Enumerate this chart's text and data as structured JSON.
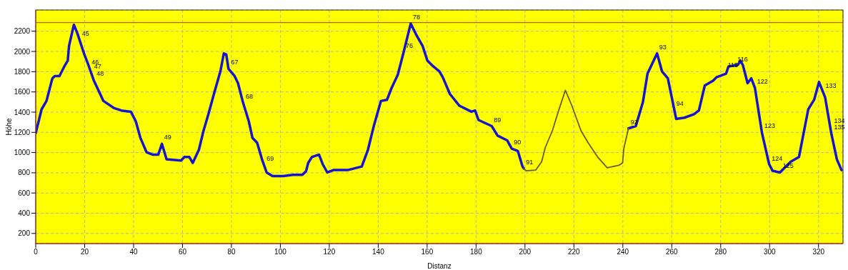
{
  "chart_data": {
    "type": "line",
    "xlabel": "Distanz",
    "ylabel": "Höhe",
    "xlim": [
      0,
      330
    ],
    "ylim": [
      100,
      2410
    ],
    "xticks": [
      0,
      20,
      40,
      60,
      80,
      100,
      120,
      140,
      160,
      180,
      200,
      220,
      240,
      260,
      280,
      300,
      320
    ],
    "yticks": [
      200,
      400,
      600,
      800,
      1000,
      1200,
      1400,
      1600,
      1800,
      2000,
      2200
    ],
    "grid": true,
    "line_style": "solid",
    "marker": "none",
    "ref_lines": [
      {
        "axis": "y",
        "value": 2285,
        "color": "#c83200"
      }
    ],
    "series": [
      {
        "color": "#1414d2",
        "x": [
          0,
          2.4,
          4.4,
          6.8,
          7.8,
          9.7,
          11.7,
          13.1,
          13.6,
          15.6,
          17.0,
          19.9,
          21.4,
          23.8,
          27.7,
          32.1,
          35.0,
          38.9,
          40.9,
          42.8,
          45.3,
          47.7,
          50.1,
          51.6,
          53.5,
          59.4,
          60.8,
          62.8,
          64.2,
          66.7,
          68.6,
          70.6,
          73.0,
          75.5,
          76.9,
          77.9,
          78.8,
          81.3,
          82.7,
          84.7,
          87.1,
          88.6,
          90.5,
          92.5,
          94.4,
          96.8,
          101.2,
          105.1,
          109.0,
          110.5,
          111.4,
          112.9,
          115.8,
          117.3,
          119.2,
          121.7,
          127.5,
          133.3,
          135.8,
          138.2,
          141.1,
          143.6,
          145.5,
          148.0,
          150.4,
          153.3,
          155.7,
          158.2,
          160.1,
          162.5,
          165.0,
          166.4,
          169.3,
          173.2,
          178.1,
          179.6,
          181.0,
          186.4,
          188.8,
          192.7,
          194.6,
          197.1,
          199.0,
          199.5,
          200.5,
          204.4,
          206.8,
          208.3,
          211.2,
          213.6,
          216.5,
          219.0,
          222.9,
          225.8,
          229.7,
          233.6,
          238.4,
          239.9,
          240.4,
          242.3,
          245.3,
          248.2,
          250.1,
          254.0,
          256.0,
          258.4,
          261.8,
          265.2,
          269.1,
          271.1,
          273.5,
          276.9,
          278.3,
          282.2,
          283.2,
          287.1,
          288.1,
          289.1,
          291.0,
          292.5,
          294.0,
          296.9,
          299.8,
          301.2,
          304.2,
          308.6,
          312.0,
          315.8,
          318.2,
          320.2,
          322.7,
          325.2,
          327.5,
          329.4
        ],
        "values": [
          1192,
          1428,
          1510,
          1734,
          1757,
          1757,
          1852,
          1910,
          2052,
          2264,
          2181,
          1969,
          1875,
          1710,
          1510,
          1439,
          1416,
          1404,
          1310,
          1145,
          1004,
          980,
          980,
          1086,
          933,
          921,
          956,
          956,
          898,
          1027,
          1216,
          1380,
          1592,
          1804,
          1981,
          1969,
          1828,
          1757,
          1686,
          1498,
          1310,
          1145,
          1098,
          933,
          803,
          768,
          768,
          780,
          780,
          815,
          898,
          956,
          980,
          886,
          803,
          827,
          827,
          862,
          1027,
          1262,
          1510,
          1522,
          1640,
          1769,
          1993,
          2276,
          2158,
          2052,
          1910,
          1852,
          1804,
          1745,
          1580,
          1463,
          1404,
          1416,
          1322,
          1262,
          1168,
          1121,
          1039,
          1015,
          862,
          843,
          null,
          null,
          null,
          null,
          null,
          null,
          null,
          null,
          null,
          null,
          null,
          null,
          null,
          null,
          null,
          1239,
          1262,
          1498,
          1781,
          1981,
          1804,
          1734,
          1333,
          1345,
          1380,
          1416,
          1663,
          1710,
          1745,
          1781,
          1852,
          1868,
          1910,
          1863,
          1686,
          1734,
          1640,
          1192,
          886,
          820,
          803,
          909,
          956,
          1428,
          1522,
          1698,
          1545,
          1192,
          933,
          827
        ]
      },
      {
        "color": "#6b5a1e",
        "x": [
          199.5,
          200.5,
          204.4,
          206.8,
          208.3,
          211.2,
          213.6,
          216.5,
          219.0,
          222.9,
          225.8,
          229.7,
          233.6,
          238.4,
          239.9,
          240.4,
          242.3
        ],
        "values": [
          843,
          820,
          827,
          909,
          1050,
          1216,
          1404,
          1616,
          1474,
          1216,
          1098,
          956,
          850,
          874,
          898,
          1039,
          1239
        ]
      }
    ],
    "annotations": [
      {
        "text": "45",
        "x": 18,
        "y": 2110
      },
      {
        "text": "46",
        "x": 22,
        "y": 1830
      },
      {
        "text": "47",
        "x": 23,
        "y": 1790
      },
      {
        "text": "48",
        "x": 24,
        "y": 1720
      },
      {
        "text": "49",
        "x": 51.6,
        "y": 1086
      },
      {
        "text": "67",
        "x": 79,
        "y": 1830
      },
      {
        "text": "68",
        "x": 85,
        "y": 1490
      },
      {
        "text": "69",
        "x": 93.5,
        "y": 880
      },
      {
        "text": "76",
        "x": 150.4,
        "y": 1993
      },
      {
        "text": "78",
        "x": 153.3,
        "y": 2276
      },
      {
        "text": "89",
        "x": 186.4,
        "y": 1262
      },
      {
        "text": "90",
        "x": 194.6,
        "y": 1039
      },
      {
        "text": "91",
        "x": 199.5,
        "y": 843
      },
      {
        "text": "92",
        "x": 242.3,
        "y": 1239
      },
      {
        "text": "93",
        "x": 254.0,
        "y": 1981
      },
      {
        "text": "94",
        "x": 261,
        "y": 1420
      },
      {
        "text": "115",
        "x": 282,
        "y": 1800
      },
      {
        "text": "116",
        "x": 286,
        "y": 1860
      },
      {
        "text": "122",
        "x": 294,
        "y": 1640
      },
      {
        "text": "123",
        "x": 297,
        "y": 1200
      },
      {
        "text": "124",
        "x": 300,
        "y": 880
      },
      {
        "text": "125",
        "x": 304.5,
        "y": 803
      },
      {
        "text": "133",
        "x": 322,
        "y": 1600
      },
      {
        "text": "134",
        "x": 325.5,
        "y": 1250
      },
      {
        "text": "135",
        "x": 325.5,
        "y": 1190
      }
    ]
  }
}
